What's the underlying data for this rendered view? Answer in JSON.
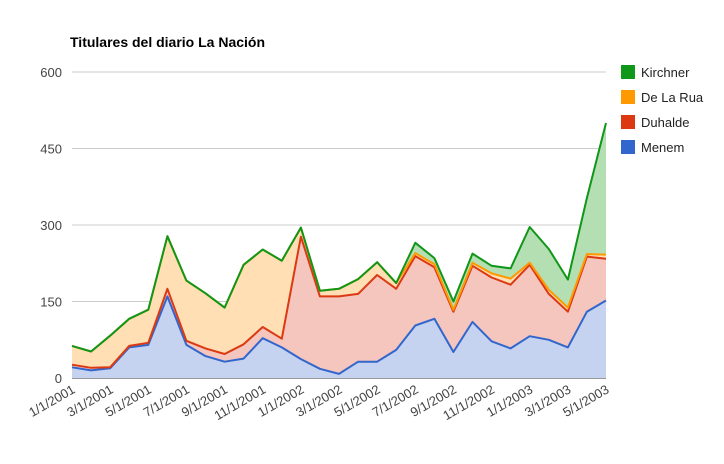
{
  "chart_data": {
    "type": "area",
    "stacked": true,
    "title": "Titulares del diario La Nación",
    "xlabel": "",
    "ylabel": "",
    "ylim": [
      0,
      600
    ],
    "yticks": [
      "0",
      "150",
      "300",
      "450",
      "600"
    ],
    "grid": true,
    "legend_position": "right",
    "x": [
      "1/1/2001",
      "2/1/2001",
      "3/1/2001",
      "4/1/2001",
      "5/1/2001",
      "6/1/2001",
      "7/1/2001",
      "8/1/2001",
      "9/1/2001",
      "10/1/2001",
      "11/1/2001",
      "12/1/2001",
      "1/1/2002",
      "2/1/2002",
      "3/1/2002",
      "4/1/2002",
      "5/1/2002",
      "6/1/2002",
      "7/1/2002",
      "8/1/2002",
      "9/1/2002",
      "10/1/2002",
      "11/1/2002",
      "12/1/2002",
      "1/1/2003",
      "2/1/2003",
      "3/1/2003",
      "4/1/2003",
      "5/1/2003"
    ],
    "x_tick_labels": [
      "1/1/2001",
      "3/1/2001",
      "5/1/2001",
      "7/1/2001",
      "9/1/2001",
      "11/1/2001",
      "1/1/2002",
      "3/1/2002",
      "5/1/2002",
      "7/1/2002",
      "9/1/2002",
      "11/1/2002",
      "1/1/2003",
      "3/1/2003",
      "5/1/2003"
    ],
    "series": [
      {
        "name": "Menem",
        "color": "#3366cc",
        "fill": "#c5d3f0",
        "values": [
          21,
          15,
          19,
          60,
          65,
          160,
          65,
          43,
          32,
          38,
          78,
          60,
          37,
          18,
          8,
          32,
          32,
          55,
          103,
          116,
          51,
          110,
          72,
          58,
          82,
          75,
          60,
          130,
          152
        ]
      },
      {
        "name": "Duhalde",
        "color": "#dc3912",
        "fill": "#f4c6be",
        "values": [
          5,
          5,
          2,
          3,
          4,
          15,
          8,
          15,
          15,
          28,
          22,
          17,
          240,
          142,
          152,
          133,
          170,
          120,
          136,
          101,
          79,
          110,
          125,
          125,
          140,
          90,
          70,
          108,
          82
        ]
      },
      {
        "name": "De La Rua",
        "color": "#ff9900",
        "fill": "#ffdfb3",
        "values": [
          37,
          32,
          62,
          53,
          65,
          103,
          118,
          108,
          91,
          156,
          152,
          153,
          18,
          11,
          15,
          29,
          25,
          11,
          6,
          6,
          4,
          6,
          8,
          12,
          4,
          8,
          8,
          5,
          8
        ]
      },
      {
        "name": "Kirchner",
        "color": "#109618",
        "fill": "#b3dfb3",
        "values": [
          0,
          0,
          0,
          0,
          0,
          0,
          0,
          0,
          0,
          0,
          0,
          0,
          0,
          0,
          0,
          0,
          0,
          0,
          20,
          12,
          16,
          18,
          15,
          20,
          70,
          80,
          55,
          110,
          258
        ]
      }
    ]
  }
}
